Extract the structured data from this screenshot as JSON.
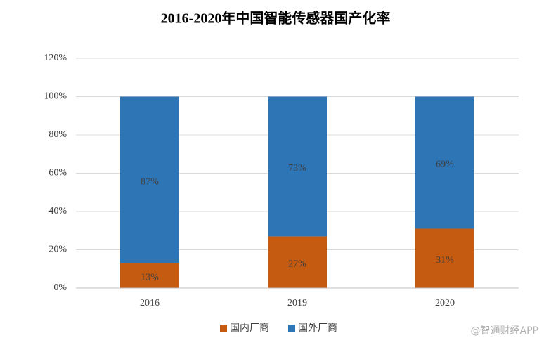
{
  "chart_data": {
    "type": "stacked_bar",
    "title": "2016-2020年中国智能传感器国产化率",
    "categories": [
      "2016",
      "2019",
      "2020"
    ],
    "series": [
      {
        "name": "国内厂商",
        "color": "#c55a11",
        "values": [
          13,
          27,
          31
        ],
        "value_labels": [
          "13%",
          "27%",
          "31%"
        ]
      },
      {
        "name": "国外厂商",
        "color": "#2e75b6",
        "values": [
          87,
          73,
          69
        ],
        "value_labels": [
          "87%",
          "73%",
          "69%"
        ]
      }
    ],
    "ylim": [
      0,
      120
    ],
    "yticks": [
      {
        "value": 0,
        "label": "0%"
      },
      {
        "value": 20,
        "label": "20%"
      },
      {
        "value": 40,
        "label": "40%"
      },
      {
        "value": 60,
        "label": "60%"
      },
      {
        "value": 80,
        "label": "80%"
      },
      {
        "value": 100,
        "label": "100%"
      },
      {
        "value": 120,
        "label": "120%"
      }
    ],
    "grid": true,
    "legend": "bottom",
    "watermark": "@智通财经APP"
  }
}
